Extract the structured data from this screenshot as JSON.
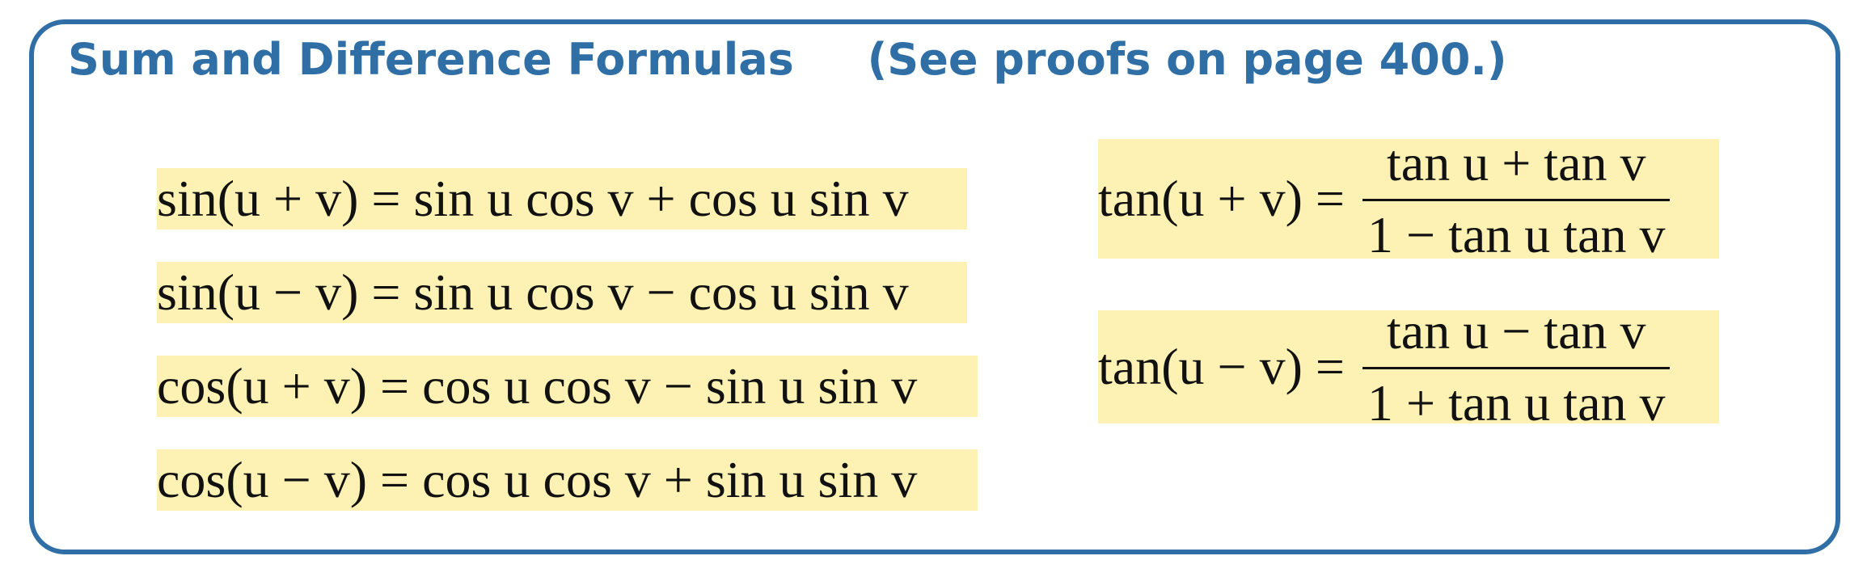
{
  "header": {
    "title": "Sum and Difference Formulas",
    "note": "(See proofs on page 400.)"
  },
  "formulas_left": [
    "sin(u + v) = sin u cos v + cos u sin v",
    "sin(u − v) = sin u cos v − cos u sin v",
    "cos(u + v) = cos u cos v − sin u sin v",
    "cos(u − v) = cos u cos v + sin u sin v"
  ],
  "formulas_right": [
    {
      "lhs": "tan(u + v) =",
      "numerator": "tan u + tan v",
      "denominator": "1 − tan u tan v"
    },
    {
      "lhs": "tan(u − v) =",
      "numerator": "tan u − tan v",
      "denominator": "1 + tan u tan v"
    }
  ],
  "colors": {
    "border": "#2f6fa6",
    "heading": "#2f6fa6",
    "highlight": "#fdf2b3"
  }
}
